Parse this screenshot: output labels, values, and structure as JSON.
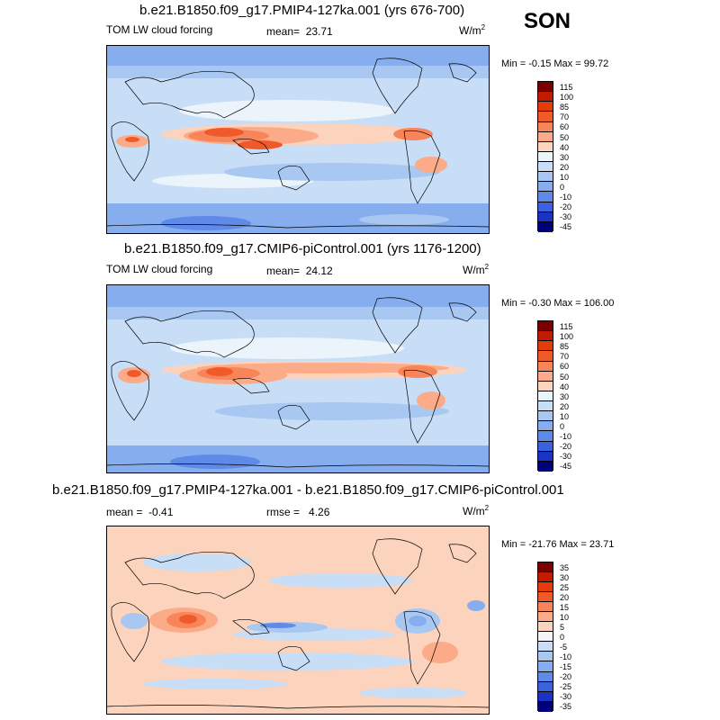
{
  "season": "SON",
  "units": "W/m",
  "units_exp": "2",
  "panels": [
    {
      "title": "b.e21.B1850.f09_g17.PMIP4-127ka.001 (yrs 676-700)",
      "field": "TOM LW cloud forcing",
      "mean_label": "mean=",
      "mean": "23.71",
      "minmax": "Min =  -0.15 Max =  99.72",
      "levels": [
        "115",
        "100",
        "85",
        "70",
        "60",
        "50",
        "40",
        "30",
        "20",
        "10",
        "0",
        "-10",
        "-20",
        "-30",
        "-45"
      ],
      "colors": [
        "#7a0000",
        "#c21c00",
        "#e53b0b",
        "#f05a2a",
        "#f8845a",
        "#fbab88",
        "#fcd3bc",
        "#ecf4fb",
        "#c8ddf6",
        "#a8c8f2",
        "#86aeee",
        "#5f8ae8",
        "#3b62de",
        "#1a33c2",
        "#00007a"
      ]
    },
    {
      "title": "b.e21.B1850.f09_g17.CMIP6-piControl.001 (yrs 1176-1200)",
      "field": "TOM LW cloud forcing",
      "mean_label": "mean=",
      "mean": "24.12",
      "minmax": "Min =  -0.30 Max = 106.00",
      "levels": [
        "115",
        "100",
        "85",
        "70",
        "60",
        "50",
        "40",
        "30",
        "20",
        "10",
        "0",
        "-10",
        "-20",
        "-30",
        "-45"
      ],
      "colors": [
        "#7a0000",
        "#c21c00",
        "#e53b0b",
        "#f05a2a",
        "#f8845a",
        "#fbab88",
        "#fcd3bc",
        "#ecf4fb",
        "#c8ddf6",
        "#a8c8f2",
        "#86aeee",
        "#5f8ae8",
        "#3b62de",
        "#1a33c2",
        "#00007a"
      ]
    },
    {
      "title": "b.e21.B1850.f09_g17.PMIP4-127ka.001 - b.e21.B1850.f09_g17.CMIP6-piControl.001",
      "mean_label": "mean =",
      "mean": "-0.41",
      "rmse_label": "rmse =",
      "rmse": "4.26",
      "minmax": "Min = -21.76 Max =  23.71",
      "levels": [
        "35",
        "30",
        "25",
        "20",
        "15",
        "10",
        "5",
        "0",
        "-5",
        "-10",
        "-15",
        "-20",
        "-25",
        "-30",
        "-35"
      ],
      "colors": [
        "#7a0000",
        "#c21c00",
        "#e53b0b",
        "#f05a2a",
        "#f8845a",
        "#fbab88",
        "#fcd3bc",
        "#f4f4f4",
        "#c8ddf6",
        "#a8c8f2",
        "#86aeee",
        "#5f8ae8",
        "#3b62de",
        "#1a33c2",
        "#00007a"
      ]
    }
  ],
  "chart_data": {
    "type": "heatmap",
    "projection": "cylindrical equidistant, centered on Pacific",
    "variable": "TOM LW cloud forcing",
    "season": "SON",
    "panels": [
      {
        "case": "b.e21.B1850.f09_g17.PMIP4-127ka.001 (yrs 676-700)",
        "mean": 23.71,
        "min": -0.15,
        "max": 99.72
      },
      {
        "case": "b.e21.B1850.f09_g17.CMIP6-piControl.001 (yrs 1176-1200)",
        "mean": 24.12,
        "min": -0.3,
        "max": 106.0
      },
      {
        "case": "difference",
        "mean": -0.41,
        "rmse": 4.26,
        "min": -21.76,
        "max": 23.71
      }
    ]
  }
}
